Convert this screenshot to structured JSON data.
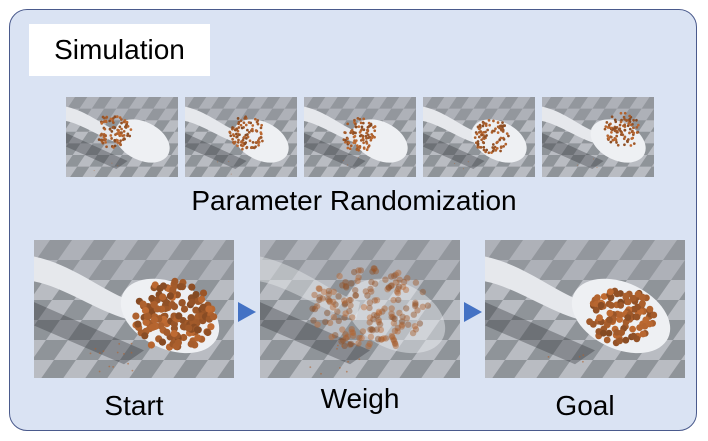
{
  "panel": {
    "title": "Simulation",
    "randomization_label": "Parameter Randomization",
    "stages": [
      {
        "label": "Start"
      },
      {
        "label": "Weigh"
      },
      {
        "label": "Goal"
      }
    ]
  },
  "colors": {
    "panel_background": "#dae3f3",
    "panel_border": "#4a5a8c",
    "arrow": "#4472c4",
    "bead": "#b0622e",
    "floor_light": "#b9bcc2",
    "floor_dark": "#6e7279"
  }
}
